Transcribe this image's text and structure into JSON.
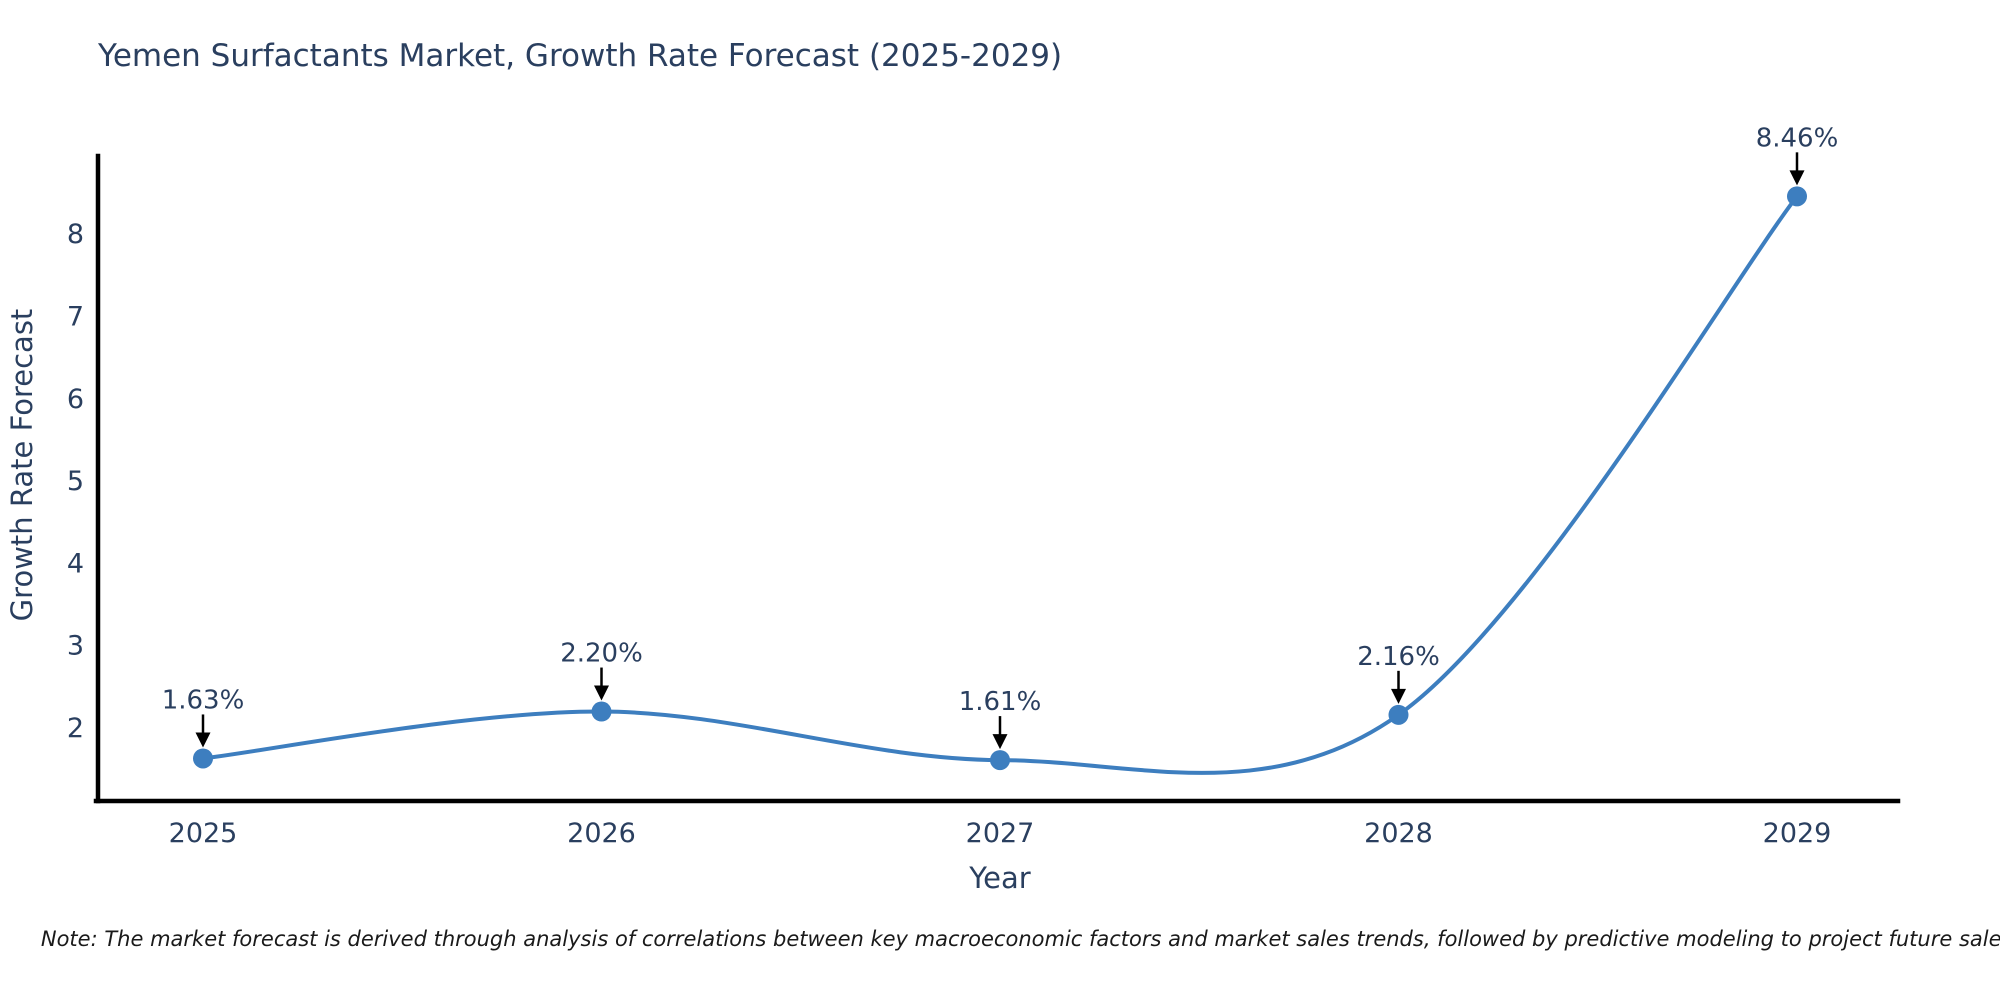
{
  "title": "Yemen Surfactants Market, Growth Rate Forecast (2025-2029)",
  "note": "Note: The market forecast is derived through analysis of correlations between key macroeconomic factors and market sales trends, followed by predictive modeling to project future sales.",
  "chart_data": {
    "type": "line",
    "line_shape": "spline",
    "title": "Yemen Surfactants Market, Growth Rate Forecast (2025-2029)",
    "xlabel": "Year",
    "ylabel": "Growth Rate Forecast",
    "categories": [
      "2025",
      "2026",
      "2027",
      "2028",
      "2029"
    ],
    "series": [
      {
        "name": "Growth Rate Forecast",
        "values": [
          1.63,
          2.2,
          1.61,
          2.16,
          8.46
        ],
        "point_labels": [
          "1.63%",
          "2.20%",
          "1.61%",
          "2.16%",
          "8.46%"
        ]
      }
    ],
    "yticks": [
      2,
      3,
      4,
      5,
      6,
      7,
      8
    ],
    "ylim": [
      1.1,
      8.9
    ],
    "grid": false,
    "legend_position": "none",
    "annotations_have_arrows": true,
    "colors": {
      "line": "#3d7ebf",
      "marker": "#3d7ebf",
      "axis": "#000000",
      "text": "#2a3f5f",
      "annotation_text": "#2a3f5f",
      "arrow": "#000000",
      "note_text": "#1a1a1a",
      "background": "#ffffff"
    }
  }
}
